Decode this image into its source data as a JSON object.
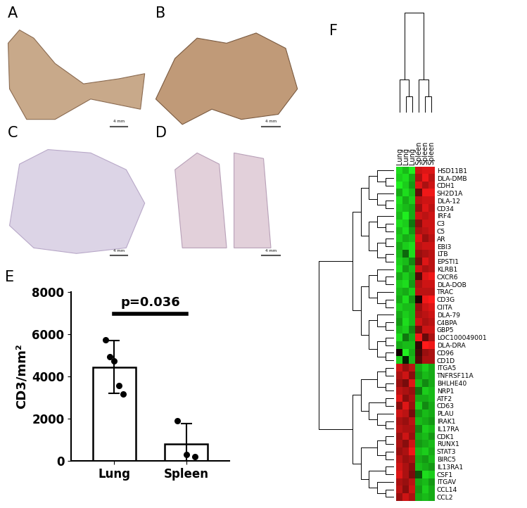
{
  "panel_labels": [
    "A",
    "B",
    "C",
    "D",
    "E",
    "F"
  ],
  "scale_bar_label": "4 mm",
  "chart_data": [
    {
      "type": "bar",
      "categories": [
        "Lung",
        "Spleen"
      ],
      "values": [
        4450,
        780
      ],
      "error": [
        1250,
        980
      ],
      "points": [
        [
          5750,
          4950,
          4750,
          3550,
          3150
        ],
        [
          1900,
          300,
          200
        ]
      ],
      "color": "#ffffff",
      "ylabel": "CD3/mm²",
      "ylim": [
        0,
        8000
      ],
      "yticks": [
        0,
        2000,
        4000,
        6000,
        8000
      ],
      "annotation": "p=0.036",
      "grid": false
    },
    {
      "type": "heatmap",
      "columns": [
        "Lung",
        "Lung",
        "Lung",
        "Spleen",
        "Spleen",
        "Spleen"
      ],
      "rows": [
        "HSD11B1",
        "DLA-DMB",
        "CDH1",
        "SH2D1A",
        "DLA-12",
        "CD34",
        "IRF4",
        "C3",
        "C5",
        "AR",
        "EBI3",
        "LTB",
        "EPSTI1",
        "KLRB1",
        "CXCR6",
        "DLA-DOB",
        "TRAC",
        "CD3G",
        "CIITA",
        "DLA-79",
        "C4BPA",
        "GBP5",
        "LOC100049001",
        "DLA-DRA",
        "CD96",
        "CD1D",
        "ITGA5",
        "TNFRSF11A",
        "BHLHE40",
        "NRP1",
        "ATF2",
        "CD63",
        "PLAU",
        "IRAK1",
        "IL17RA",
        "CDK1",
        "RUNX1",
        "STAT3",
        "BIRC5",
        "IL13RA1",
        "CSF1",
        "ITGAV",
        "CCL14",
        "CCL2"
      ],
      "cells": [
        [
          -1.3,
          -1.1,
          -1.4,
          1.2,
          1.3,
          1.3
        ],
        [
          -1.2,
          -1.3,
          -1.0,
          1.0,
          1.4,
          1.1
        ],
        [
          -1.4,
          -1.2,
          -0.9,
          1.3,
          1.0,
          1.2
        ],
        [
          -1.0,
          -1.3,
          -1.1,
          0.6,
          1.4,
          1.4
        ],
        [
          -1.3,
          -1.0,
          -1.2,
          1.1,
          1.2,
          1.2
        ],
        [
          -1.2,
          -1.1,
          -1.0,
          0.9,
          1.3,
          1.1
        ],
        [
          -1.1,
          -1.4,
          -1.0,
          1.2,
          1.1,
          1.2
        ],
        [
          -1.3,
          -1.2,
          -0.7,
          0.8,
          1.2,
          1.2
        ],
        [
          -1.1,
          -1.3,
          -0.9,
          1.0,
          1.1,
          1.2
        ],
        [
          -1.2,
          -1.0,
          -1.1,
          1.3,
          0.9,
          1.1
        ],
        [
          -1.0,
          -1.2,
          -1.3,
          1.1,
          1.2,
          1.2
        ],
        [
          -1.1,
          -0.6,
          -1.3,
          0.9,
          1.0,
          1.1
        ],
        [
          -1.2,
          -1.1,
          -0.8,
          0.7,
          1.3,
          1.1
        ],
        [
          -1.3,
          -0.9,
          -1.1,
          1.2,
          1.0,
          1.1
        ],
        [
          -1.0,
          -1.2,
          -1.0,
          0.5,
          1.3,
          1.4
        ],
        [
          -1.2,
          -1.3,
          -0.9,
          1.0,
          1.2,
          1.2
        ],
        [
          -1.1,
          -1.0,
          -1.2,
          1.1,
          1.1,
          1.1
        ],
        [
          -1.0,
          -1.3,
          -0.9,
          0.2,
          1.4,
          1.6
        ],
        [
          -1.2,
          -1.1,
          -1.1,
          0.9,
          1.2,
          1.3
        ],
        [
          -1.0,
          -1.2,
          -1.1,
          1.0,
          1.1,
          1.2
        ],
        [
          -0.9,
          -1.3,
          -1.1,
          1.2,
          1.0,
          1.1
        ],
        [
          -1.1,
          -1.2,
          -0.8,
          0.7,
          1.2,
          1.2
        ],
        [
          -1.3,
          -0.7,
          -1.0,
          1.4,
          0.6,
          1.0
        ],
        [
          -1.0,
          -1.1,
          -1.1,
          0.3,
          1.5,
          1.4
        ],
        [
          0.1,
          -1.4,
          -1.0,
          0.4,
          0.9,
          1.0
        ],
        [
          -1.2,
          -0.2,
          -1.1,
          0.5,
          1.0,
          1.0
        ],
        [
          1.2,
          0.9,
          1.1,
          -1.0,
          -1.2,
          -1.0
        ],
        [
          1.0,
          1.2,
          0.8,
          -0.9,
          -1.1,
          -1.0
        ],
        [
          0.9,
          0.7,
          1.3,
          -1.1,
          -0.8,
          -1.0
        ],
        [
          1.1,
          1.0,
          0.9,
          -0.7,
          -1.2,
          -1.1
        ],
        [
          1.3,
          0.8,
          1.0,
          -1.0,
          -1.0,
          -1.1
        ],
        [
          0.8,
          1.3,
          0.9,
          -1.2,
          -0.8,
          -1.0
        ],
        [
          1.2,
          1.1,
          0.7,
          -0.9,
          -1.1,
          -1.0
        ],
        [
          1.0,
          0.9,
          1.1,
          -1.1,
          -1.0,
          -0.9
        ],
        [
          1.1,
          1.0,
          1.0,
          -0.8,
          -1.2,
          -1.1
        ],
        [
          0.9,
          1.2,
          0.9,
          -1.0,
          -1.1,
          -0.9
        ],
        [
          1.0,
          0.8,
          1.2,
          -0.9,
          -1.0,
          -1.1
        ],
        [
          0.9,
          1.0,
          1.4,
          -1.1,
          -1.2,
          -1.0
        ],
        [
          1.1,
          0.9,
          1.0,
          -1.0,
          -0.9,
          -1.1
        ],
        [
          1.2,
          1.0,
          0.8,
          -1.1,
          -1.0,
          -0.9
        ],
        [
          1.3,
          1.0,
          0.7,
          -0.5,
          -1.3,
          -1.2
        ],
        [
          1.0,
          0.9,
          1.1,
          -1.0,
          -1.1,
          -0.9
        ],
        [
          1.1,
          0.8,
          1.2,
          -0.9,
          -1.2,
          -1.0
        ],
        [
          0.9,
          1.2,
          1.0,
          -1.0,
          -1.1,
          -1.0
        ]
      ],
      "color_range": [
        -1.5,
        1.5
      ]
    }
  ]
}
